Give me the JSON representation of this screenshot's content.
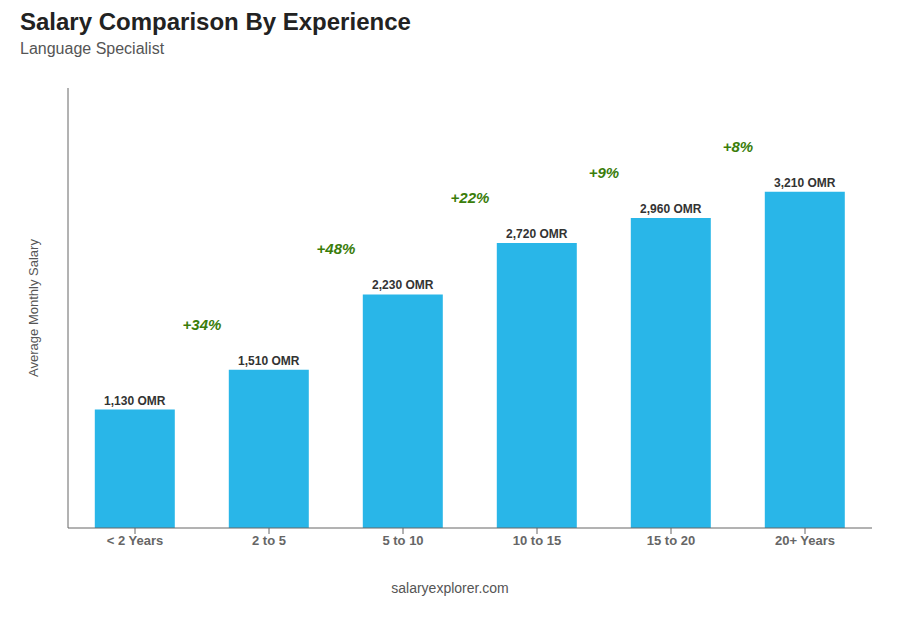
{
  "chart_data": {
    "type": "bar",
    "title": "Salary Comparison By Experience",
    "subtitle": "Language Specialist",
    "ylabel": "Average Monthly Salary",
    "categories": [
      "< 2 Years",
      "2 to 5",
      "5 to 10",
      "10 to 15",
      "15 to 20",
      "20+ Years"
    ],
    "values": [
      1130,
      1510,
      2230,
      2720,
      2960,
      3210
    ],
    "value_labels": [
      "1,130 OMR",
      "1,510 OMR",
      "2,230 OMR",
      "2,720 OMR",
      "2,960 OMR",
      "3,210 OMR"
    ],
    "data_labels": true,
    "annotations": [
      "+34%",
      "+48%",
      "+22%",
      "+9%",
      "+8%"
    ],
    "footer": "salaryexplorer.com",
    "color": "#29b6e8",
    "ylim": [
      0,
      4200
    ],
    "grid": false,
    "tick_labels": "x"
  }
}
